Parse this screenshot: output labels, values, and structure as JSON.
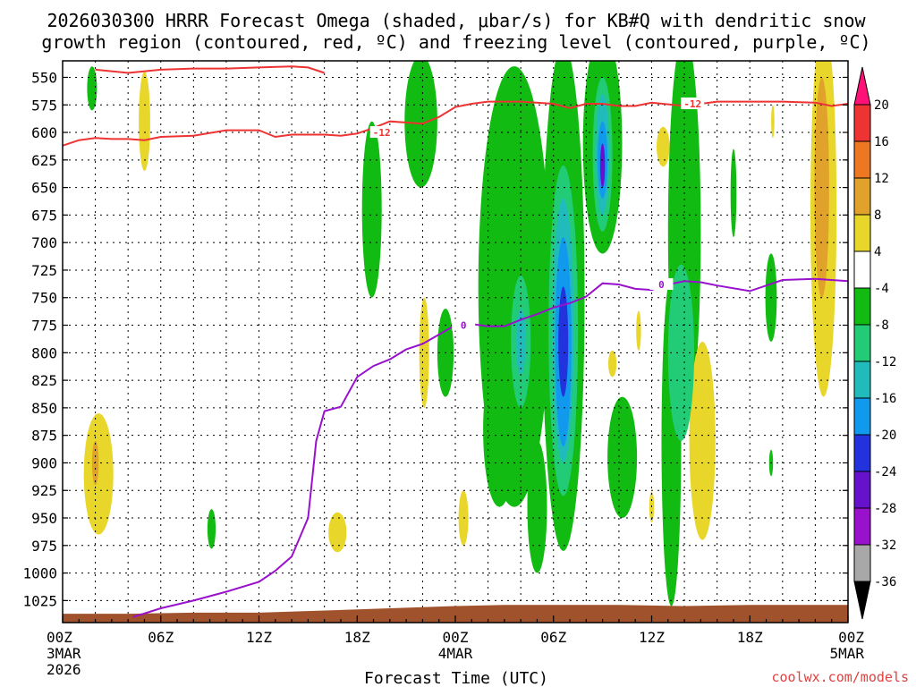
{
  "chart_data": {
    "type": "heatmap",
    "title": "2026030300 HRRR Forecast Omega (shaded, μbar/s) for KB#Q with dendritic snow",
    "subtitle": "growth region (contoured, red, ºC) and freezing level (contoured, purple, ºC)",
    "xlabel": "Forecast Time (UTC)",
    "ylabel": "",
    "x_hours_range": [
      0,
      48
    ],
    "ylim_hpa": [
      1045,
      535
    ],
    "x_ticks": [
      {
        "hour": 0,
        "label": "00Z",
        "sub1": "3MAR",
        "sub2": "2026"
      },
      {
        "hour": 6,
        "label": "06Z",
        "sub1": "",
        "sub2": ""
      },
      {
        "hour": 12,
        "label": "12Z",
        "sub1": "",
        "sub2": ""
      },
      {
        "hour": 18,
        "label": "18Z",
        "sub1": "",
        "sub2": ""
      },
      {
        "hour": 24,
        "label": "00Z",
        "sub1": "4MAR",
        "sub2": ""
      },
      {
        "hour": 30,
        "label": "06Z",
        "sub1": "",
        "sub2": ""
      },
      {
        "hour": 36,
        "label": "12Z",
        "sub1": "",
        "sub2": ""
      },
      {
        "hour": 42,
        "label": "18Z",
        "sub1": "",
        "sub2": ""
      },
      {
        "hour": 48,
        "label": "00Z",
        "sub1": "5MAR",
        "sub2": ""
      }
    ],
    "y_ticks": [
      550,
      575,
      600,
      625,
      650,
      675,
      700,
      725,
      750,
      775,
      800,
      825,
      850,
      875,
      900,
      925,
      950,
      975,
      1000,
      1025
    ],
    "colorbar": {
      "levels": [
        20,
        16,
        12,
        8,
        4,
        -4,
        -8,
        -12,
        -16,
        -20,
        -24,
        -28,
        -32,
        -36
      ],
      "colors": [
        "#ff1177",
        "#ee3333",
        "#ee7722",
        "#e0a22a",
        "#e8d62a",
        "#ffffff",
        "#11bb11",
        "#22cc77",
        "#22bbbb",
        "#1199ee",
        "#2233dd",
        "#6611cc",
        "#9911cc",
        "#a8a8a8",
        "#000000"
      ]
    },
    "dgz_contour": {
      "label": "-12",
      "color": "#ee3333",
      "x_hours": [
        0,
        1,
        2,
        3,
        4,
        5,
        6,
        8,
        10,
        12,
        13,
        14,
        16,
        17,
        18,
        19,
        20,
        22,
        23,
        24,
        25,
        26,
        28,
        30,
        31,
        32,
        33,
        34,
        35,
        36,
        38,
        40,
        42,
        44,
        46,
        47,
        48
      ],
      "p_hpa": [
        612,
        607,
        605,
        606,
        606,
        607,
        604,
        603,
        598,
        598,
        604,
        602,
        602,
        603,
        601,
        596,
        590,
        592,
        586,
        577,
        574,
        572,
        572,
        574,
        578,
        574,
        574,
        576,
        576,
        573,
        576,
        572,
        572,
        572,
        573,
        576,
        574
      ]
    },
    "dgz_contour_top": {
      "x_hours": [
        2,
        4,
        6,
        8,
        10,
        12,
        14,
        15,
        16
      ],
      "p_hpa": [
        543,
        546,
        543,
        542,
        542,
        541,
        540,
        541,
        546
      ]
    },
    "freezing_level": {
      "label": "0",
      "color": "#9911cc",
      "x_hours": [
        4.3,
        6,
        8,
        10,
        12,
        13,
        14,
        15,
        15.5,
        16,
        17,
        18,
        19,
        20,
        21,
        22,
        24,
        25,
        26,
        27,
        28,
        29,
        30,
        31,
        32,
        33,
        34,
        35,
        36,
        37,
        38,
        39,
        40,
        42,
        44,
        46,
        48
      ],
      "p_hpa": [
        1040,
        1032,
        1025,
        1017,
        1008,
        998,
        985,
        950,
        880,
        853,
        849,
        822,
        812,
        806,
        797,
        792,
        775,
        774,
        776,
        776,
        770,
        765,
        759,
        755,
        749,
        737,
        738,
        742,
        743,
        738,
        735,
        736,
        739,
        744,
        734,
        733,
        735
      ]
    },
    "terrain": {
      "color": "#a0522d",
      "x_hours": [
        0,
        4,
        8,
        12,
        16,
        20,
        24,
        27,
        30,
        34,
        38,
        42,
        48
      ],
      "p_hpa": [
        1037,
        1037,
        1036,
        1036,
        1034,
        1032,
        1030,
        1029,
        1029,
        1029,
        1030,
        1029,
        1029
      ]
    },
    "omega_features": [
      {
        "x": 1.8,
        "p": 560,
        "rx": 0.3,
        "ry": 20,
        "v": -6
      },
      {
        "x": 5.0,
        "p": 590,
        "rx": 0.35,
        "ry": 45,
        "v": 6
      },
      {
        "x": 2.2,
        "p": 910,
        "rx": 0.9,
        "ry": 55,
        "v": 6
      },
      {
        "x": 2.0,
        "p": 900,
        "rx": 0.2,
        "ry": 20,
        "v": 10
      },
      {
        "x": 9.1,
        "p": 960,
        "rx": 0.25,
        "ry": 18,
        "v": -6
      },
      {
        "x": 16.8,
        "p": 963,
        "rx": 0.55,
        "ry": 18,
        "v": 6
      },
      {
        "x": 18.9,
        "p": 670,
        "rx": 0.6,
        "ry": 80,
        "v": -6
      },
      {
        "x": 21.9,
        "p": 590,
        "rx": 1.0,
        "ry": 60,
        "v": -6
      },
      {
        "x": 22.1,
        "p": 800,
        "rx": 0.3,
        "ry": 50,
        "v": 6
      },
      {
        "x": 23.4,
        "p": 800,
        "rx": 0.5,
        "ry": 40,
        "v": -6
      },
      {
        "x": 27.6,
        "p": 740,
        "rx": 2.2,
        "ry": 200,
        "v": -6
      },
      {
        "x": 28.0,
        "p": 830,
        "rx": 1.2,
        "ry": 100,
        "v": -6
      },
      {
        "x": 26.7,
        "p": 870,
        "rx": 1.0,
        "ry": 70,
        "v": -6
      },
      {
        "x": 28.0,
        "p": 790,
        "rx": 0.6,
        "ry": 60,
        "v": -10
      },
      {
        "x": 28.0,
        "p": 790,
        "rx": 0.3,
        "ry": 30,
        "v": -14
      },
      {
        "x": 24.5,
        "p": 950,
        "rx": 0.3,
        "ry": 25,
        "v": 6
      },
      {
        "x": 29.0,
        "p": 940,
        "rx": 0.6,
        "ry": 60,
        "v": -6
      },
      {
        "x": 30.6,
        "p": 750,
        "rx": 1.3,
        "ry": 230,
        "v": -6
      },
      {
        "x": 30.6,
        "p": 780,
        "rx": 0.9,
        "ry": 150,
        "v": -10
      },
      {
        "x": 30.6,
        "p": 780,
        "rx": 0.65,
        "ry": 120,
        "v": -14
      },
      {
        "x": 30.6,
        "p": 790,
        "rx": 0.5,
        "ry": 95,
        "v": -17
      },
      {
        "x": 30.6,
        "p": 790,
        "rx": 0.3,
        "ry": 50,
        "v": -22
      },
      {
        "x": 33.0,
        "p": 610,
        "rx": 1.2,
        "ry": 100,
        "v": -6
      },
      {
        "x": 33.0,
        "p": 620,
        "rx": 0.6,
        "ry": 70,
        "v": -10
      },
      {
        "x": 33.0,
        "p": 620,
        "rx": 0.4,
        "ry": 55,
        "v": -14
      },
      {
        "x": 33.0,
        "p": 625,
        "rx": 0.3,
        "ry": 35,
        "v": -20
      },
      {
        "x": 33.0,
        "p": 630,
        "rx": 0.15,
        "ry": 20,
        "v": -26
      },
      {
        "x": 33.6,
        "p": 810,
        "rx": 0.25,
        "ry": 12,
        "v": 6
      },
      {
        "x": 34.2,
        "p": 895,
        "rx": 0.9,
        "ry": 55,
        "v": -6
      },
      {
        "x": 37.2,
        "p": 880,
        "rx": 0.6,
        "ry": 150,
        "v": -6
      },
      {
        "x": 38.0,
        "p": 690,
        "rx": 1.0,
        "ry": 180,
        "v": -6
      },
      {
        "x": 37.8,
        "p": 800,
        "rx": 0.8,
        "ry": 80,
        "v": -10
      },
      {
        "x": 39.1,
        "p": 880,
        "rx": 0.8,
        "ry": 90,
        "v": 6
      },
      {
        "x": 38.2,
        "p": 780,
        "rx": 0.2,
        "ry": 12,
        "v": 6
      },
      {
        "x": 36.0,
        "p": 940,
        "rx": 0.15,
        "ry": 14,
        "v": 6
      },
      {
        "x": 35.2,
        "p": 780,
        "rx": 0.15,
        "ry": 18,
        "v": 6
      },
      {
        "x": 36.7,
        "p": 613,
        "rx": 0.4,
        "ry": 18,
        "v": 6
      },
      {
        "x": 41.0,
        "p": 655,
        "rx": 0.18,
        "ry": 40,
        "v": -6
      },
      {
        "x": 43.3,
        "p": 750,
        "rx": 0.35,
        "ry": 40,
        "v": -6
      },
      {
        "x": 43.3,
        "p": 900,
        "rx": 0.12,
        "ry": 12,
        "v": -6
      },
      {
        "x": 43.4,
        "p": 590,
        "rx": 0.1,
        "ry": 15,
        "v": 6
      },
      {
        "x": 46.5,
        "p": 670,
        "rx": 0.8,
        "ry": 170,
        "v": 6
      },
      {
        "x": 46.4,
        "p": 650,
        "rx": 0.45,
        "ry": 100,
        "v": 10
      }
    ]
  },
  "credit": "coolwx.com/models"
}
